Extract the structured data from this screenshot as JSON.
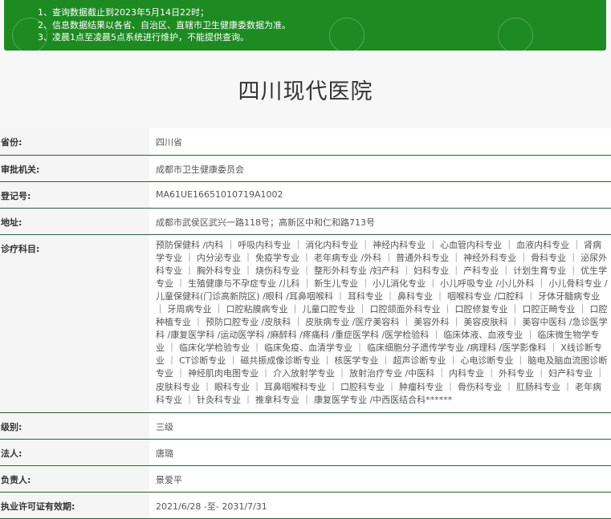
{
  "notice": {
    "lines": [
      "1、查询数据截止到2023年5月14日22时；",
      "2、信息数据结果以各省、自治区、直辖市卫生健康委数据为准。",
      "3、凌晨1点至凌晨5点系统进行维护，不能提供查询。"
    ],
    "background": "#1d8a22"
  },
  "hospital_name": "四川现代医院",
  "fields": [
    {
      "label": "省份:",
      "value": "四川省"
    },
    {
      "label": "审批机关:",
      "value": "成都市卫生健康委员会"
    },
    {
      "label": "登记号:",
      "value": "MA61UE16651010719A1002"
    },
    {
      "label": "地址:",
      "value": "成都市武侯区武兴一路118号；高新区中和仁和路713号"
    },
    {
      "label": "诊疗科目:",
      "value": "预防保健科 /内科 ｜ 呼吸内科专业 ｜ 消化内科专业 ｜ 神经内科专业 ｜ 心血管内科专业 ｜ 血液内科专业 ｜ 肾病学专业 ｜ 内分泌专业 ｜ 免疫学专业 ｜ 老年病专业 /外科 ｜ 普通外科专业 ｜ 神经外科专业 ｜ 骨科专业 ｜ 泌尿外科专业 ｜ 胸外科专业 ｜ 烧伤科专业 ｜ 整形外科专业 /妇产科 ｜ 妇科专业 ｜ 产科专业 ｜ 计划生育专业 ｜ 优生学专业 ｜ 生殖健康与不孕症专业 /儿科 ｜ 新生儿专业 ｜ 小儿消化专业 ｜ 小儿呼吸专业 /小儿外科 ｜ 小儿骨科专业 /儿童保健科(门诊高新院区) /眼科 /耳鼻咽喉科 ｜ 耳科专业 ｜ 鼻科专业 ｜ 咽喉科专业 /口腔科 ｜ 牙体牙髓病专业 ｜ 牙周病专业 ｜ 口腔粘膜病专业 ｜ 儿童口腔专业 ｜ 口腔颌面外科专业 ｜ 口腔修复专业 ｜ 口腔正畸专业 ｜ 口腔种植专业 ｜ 预防口腔专业 /皮肤科 ｜ 皮肤病专业 /医疗美容科 ｜ 美容外科 ｜ 美容皮肤科 ｜ 美容中医科 /急诊医学科 /康复医学科 /运动医学科 /麻醉科 /疼痛科 /重症医学科 /医学检验科 ｜ 临床体液、血液专业 ｜ 临床微生物学专业 ｜ 临床化学检验专业 ｜ 临床免疫、血清学专业 ｜ 临床细胞分子遗传学专业 /病理科 /医学影像科 ｜ X线诊断专业 ｜ CT诊断专业 ｜ 磁共振成像诊断专业 ｜ 核医学专业 ｜ 超声诊断专业 ｜ 心电诊断专业 ｜ 脑电及脑血流图诊断专业 ｜ 神经肌肉电图专业 ｜ 介入放射学专业 ｜ 放射治疗专业 /中医科 ｜ 内科专业 ｜ 外科专业 ｜ 妇产科专业 ｜ 皮肤科专业 ｜ 眼科专业 ｜ 耳鼻咽喉科专业 ｜ 口腔科专业 ｜ 肿瘤科专业 ｜ 骨伤科专业 ｜ 肛肠科专业 ｜ 老年病科专业 ｜ 针灸科专业 ｜ 推拿科专业 ｜ 康复医学专业 /中西医结合科******"
    },
    {
      "label": "级别:",
      "value": "三级"
    },
    {
      "label": "法人:",
      "value": "唐璐"
    },
    {
      "label": "负责人:",
      "value": "景爱平"
    },
    {
      "label": "执业许可证有效期:",
      "value": "2021/6/28 -至- 2031/7/31"
    }
  ]
}
